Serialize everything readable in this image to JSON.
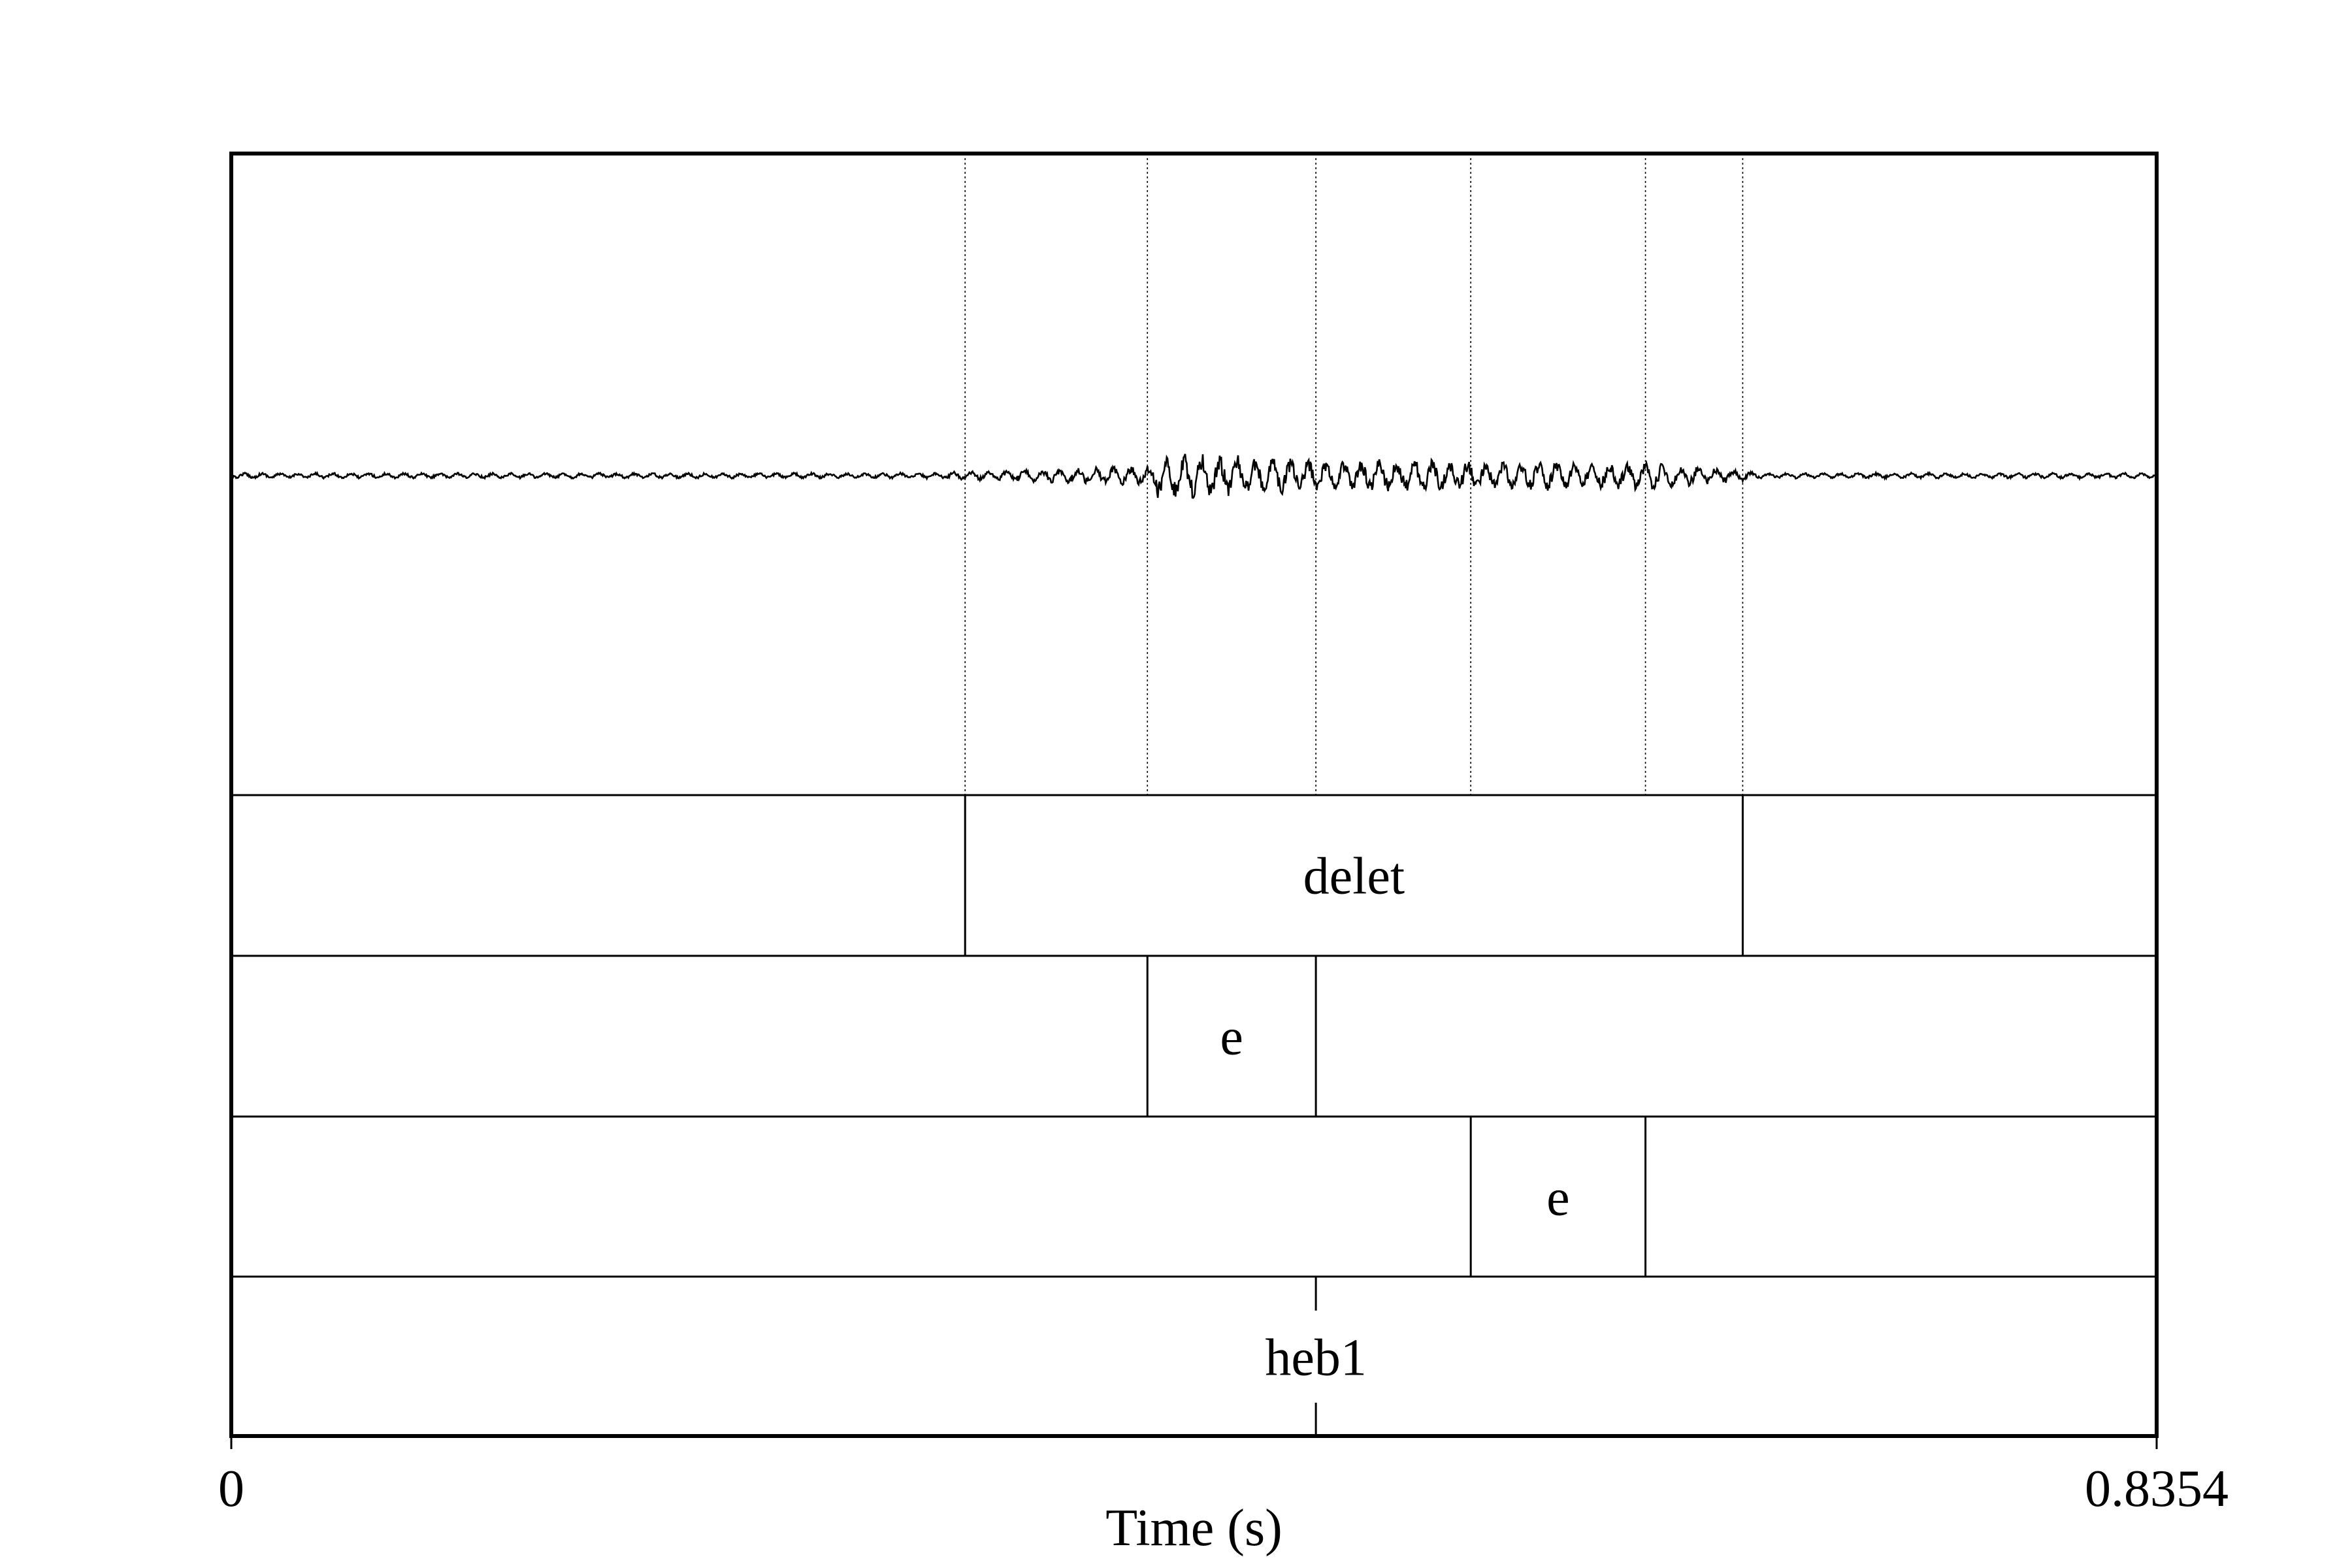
{
  "time_axis": {
    "start_label": "0",
    "end_label": "0.8354",
    "xlabel": "Time (s)",
    "range": [
      0,
      0.8354
    ]
  },
  "boundaries": [
    0.3184,
    0.3975,
    0.4706,
    0.5378,
    0.6136,
    0.6558
  ],
  "tiers": [
    {
      "intervals": [
        {
          "start": 0.3184,
          "end": 0.6558,
          "label": "delet"
        }
      ]
    },
    {
      "intervals": [
        {
          "start": 0.3975,
          "end": 0.4706,
          "label": "e"
        }
      ]
    },
    {
      "intervals": [
        {
          "start": 0.5378,
          "end": 0.6136,
          "label": "e"
        }
      ]
    },
    {
      "intervals": [
        {
          "start": 0.0,
          "end": 0.4706,
          "label": ""
        },
        {
          "start": 0.4706,
          "end": 0.8354,
          "label": "heb1"
        }
      ]
    }
  ],
  "colors": {
    "ink": "#000000",
    "background": "#ffffff"
  }
}
